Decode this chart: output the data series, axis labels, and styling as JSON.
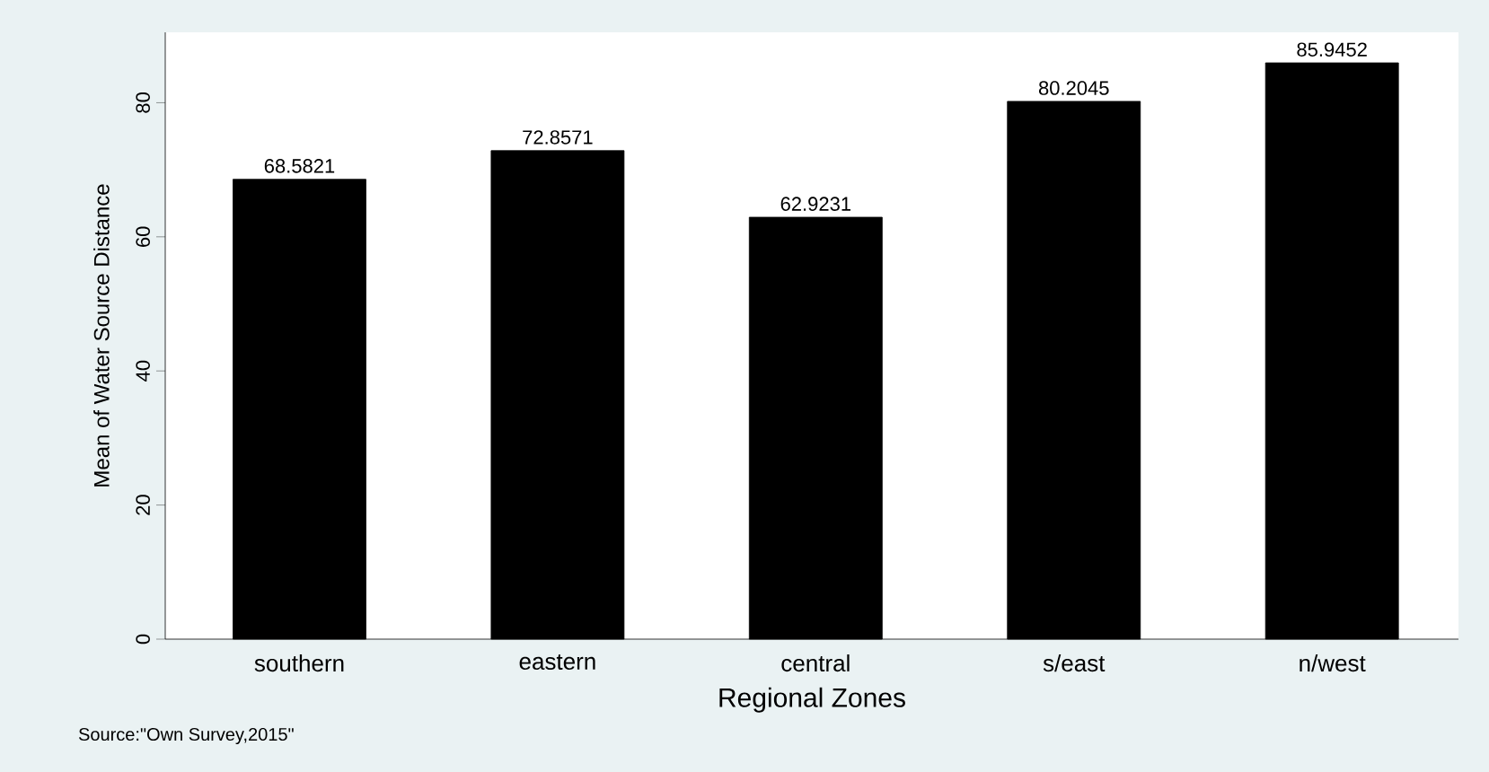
{
  "chart_data": {
    "type": "bar",
    "xlabel": "Regional Zones",
    "ylabel": "Mean of Water Source Distance",
    "categories": [
      "southern",
      "eastern",
      "central",
      "s/east",
      "n/west"
    ],
    "values": [
      68.5821,
      72.8571,
      62.9231,
      80.2045,
      85.9452
    ],
    "color": "#000000",
    "ylim": [
      0,
      90.5
    ],
    "yticks": [
      0,
      20,
      40,
      60,
      80
    ],
    "data_labels": true,
    "annotations": [
      "Source:\"Own Survey,2015\""
    ]
  }
}
